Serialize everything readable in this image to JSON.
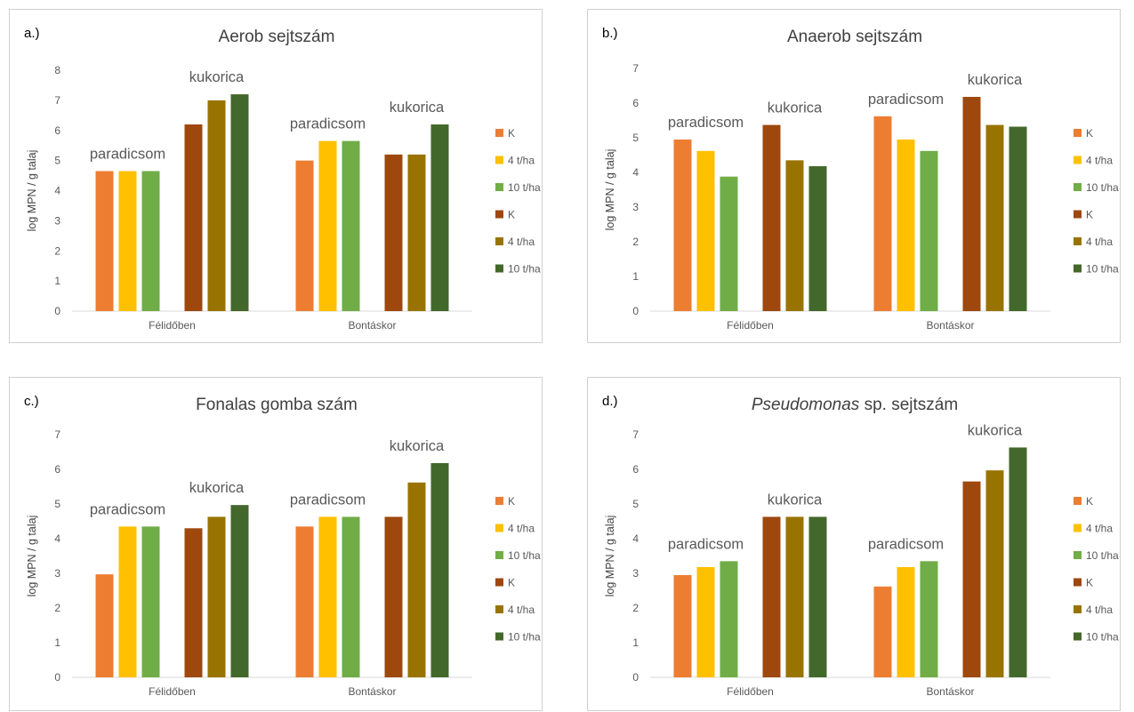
{
  "charts": [
    {
      "id": "a",
      "panel_label": "a.)",
      "title": "Aerob sejtszám",
      "title_italic": "",
      "title_rest": ""
    },
    {
      "id": "b",
      "panel_label": "b.)",
      "title": "Anaerob sejtszám",
      "title_italic": "",
      "title_rest": ""
    },
    {
      "id": "c",
      "panel_label": "c.)",
      "title": "Fonalas gomba szám",
      "title_italic": "",
      "title_rest": ""
    },
    {
      "id": "d",
      "panel_label": "d.)",
      "title": "",
      "title_italic": "Pseudomonas",
      "title_rest": " sp. sejtszám"
    }
  ],
  "colors": {
    "K_paradicsom": "#ED7D31",
    "4_paradicsom": "#FFC000",
    "10_paradicsom": "#70AD47",
    "K_kukorica": "#9E480E",
    "4_kukorica": "#997300",
    "10_kukorica": "#43682B"
  },
  "chart_data": [
    {
      "type": "bar",
      "title": "Aerob sejtszám",
      "ylabel": "log MPN / g talaj",
      "categories": [
        "Félidőben",
        "Bontáskor"
      ],
      "ylim": [
        0,
        8
      ],
      "yticks": [
        0,
        1,
        2,
        3,
        4,
        5,
        6,
        7,
        8
      ],
      "group_labels": [
        "paradicsom",
        "kukorica"
      ],
      "series": [
        {
          "name": "K",
          "group": "paradicsom",
          "values": [
            4.65,
            5.0
          ]
        },
        {
          "name": "4 t/ha",
          "group": "paradicsom",
          "values": [
            4.65,
            5.65
          ]
        },
        {
          "name": "10 t/ha",
          "group": "paradicsom",
          "values": [
            4.65,
            5.65
          ]
        },
        {
          "name": "K",
          "group": "kukorica",
          "values": [
            6.2,
            5.2
          ]
        },
        {
          "name": "4 t/ha",
          "group": "kukorica",
          "values": [
            7.0,
            5.2
          ]
        },
        {
          "name": "10 t/ha",
          "group": "kukorica",
          "values": [
            7.2,
            6.2
          ]
        }
      ],
      "legend": "right"
    },
    {
      "type": "bar",
      "title": "Anaerob sejtszám",
      "ylabel": "log MPN / g talaj",
      "categories": [
        "Félidőben",
        "Bontáskor"
      ],
      "ylim": [
        0,
        7
      ],
      "yticks": [
        0,
        1,
        2,
        3,
        4,
        5,
        6,
        7
      ],
      "group_labels": [
        "paradicsom",
        "kukorica"
      ],
      "series": [
        {
          "name": "K",
          "group": "paradicsom",
          "values": [
            4.95,
            5.62
          ]
        },
        {
          "name": "4 t/ha",
          "group": "paradicsom",
          "values": [
            4.62,
            4.95
          ]
        },
        {
          "name": "10 t/ha",
          "group": "paradicsom",
          "values": [
            3.88,
            4.62
          ]
        },
        {
          "name": "K",
          "group": "kukorica",
          "values": [
            5.37,
            6.18
          ]
        },
        {
          "name": "4 t/ha",
          "group": "kukorica",
          "values": [
            4.35,
            5.37
          ]
        },
        {
          "name": "10 t/ha",
          "group": "kukorica",
          "values": [
            4.18,
            5.32
          ]
        }
      ],
      "legend": "right"
    },
    {
      "type": "bar",
      "title": "Fonalas gomba szám",
      "ylabel": "log MPN / g talaj",
      "categories": [
        "Félidőben",
        "Bontáskor"
      ],
      "ylim": [
        0,
        7
      ],
      "yticks": [
        0,
        1,
        2,
        3,
        4,
        5,
        6,
        7
      ],
      "group_labels": [
        "paradicsom",
        "kukorica"
      ],
      "series": [
        {
          "name": "K",
          "group": "paradicsom",
          "values": [
            2.97,
            4.35
          ]
        },
        {
          "name": "4 t/ha",
          "group": "paradicsom",
          "values": [
            4.35,
            4.63
          ]
        },
        {
          "name": "10 t/ha",
          "group": "paradicsom",
          "values": [
            4.35,
            4.63
          ]
        },
        {
          "name": "K",
          "group": "kukorica",
          "values": [
            4.3,
            4.63
          ]
        },
        {
          "name": "4 t/ha",
          "group": "kukorica",
          "values": [
            4.63,
            5.62
          ]
        },
        {
          "name": "10 t/ha",
          "group": "kukorica",
          "values": [
            4.97,
            6.18
          ]
        }
      ],
      "legend": "right"
    },
    {
      "type": "bar",
      "title": "Pseudomonas sp. sejtszám",
      "ylabel": "log MPN / g talaj",
      "categories": [
        "Félidőben",
        "Bontáskor"
      ],
      "ylim": [
        0,
        7
      ],
      "yticks": [
        0,
        1,
        2,
        3,
        4,
        5,
        6,
        7
      ],
      "group_labels": [
        "paradicsom",
        "kukorica"
      ],
      "series": [
        {
          "name": "K",
          "group": "paradicsom",
          "values": [
            2.95,
            2.62
          ]
        },
        {
          "name": "4 t/ha",
          "group": "paradicsom",
          "values": [
            3.18,
            3.18
          ]
        },
        {
          "name": "10 t/ha",
          "group": "paradicsom",
          "values": [
            3.35,
            3.35
          ]
        },
        {
          "name": "K",
          "group": "kukorica",
          "values": [
            4.63,
            5.65
          ]
        },
        {
          "name": "4 t/ha",
          "group": "kukorica",
          "values": [
            4.63,
            5.97
          ]
        },
        {
          "name": "10 t/ha",
          "group": "kukorica",
          "values": [
            4.63,
            6.63
          ]
        }
      ],
      "legend": "right"
    }
  ]
}
